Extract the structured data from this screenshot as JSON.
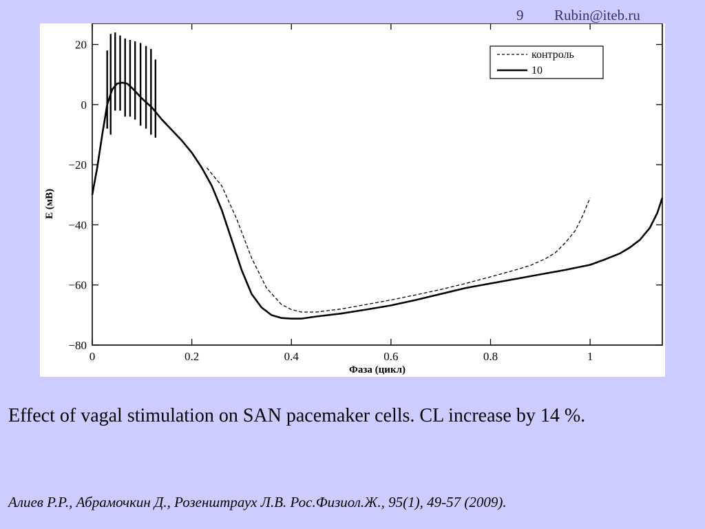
{
  "header": {
    "slide_number": "9",
    "email": "Rubin@iteb.ru"
  },
  "chart_data": {
    "type": "line",
    "title": "",
    "xlabel": "Фаза (цикл)",
    "ylabel": "E (мВ)",
    "xlim": [
      0,
      1.145
    ],
    "ylim": [
      -80,
      27
    ],
    "x_ticks": [
      0,
      0.2,
      0.4,
      0.6,
      0.8,
      1
    ],
    "x_tick_labels": [
      "0",
      "0.2",
      "0.4",
      "0.6",
      "0.8",
      "1"
    ],
    "y_ticks": [
      20,
      0,
      -20,
      -40,
      -60,
      -80
    ],
    "y_tick_labels": [
      "20",
      "0",
      "−20",
      "−40",
      "−60",
      "−80"
    ],
    "grid": false,
    "legend_position": "top-right",
    "series": [
      {
        "name": "контроль",
        "style": "dashed",
        "x": [
          0.23,
          0.26,
          0.29,
          0.32,
          0.35,
          0.38,
          0.4,
          0.42,
          0.45,
          0.5,
          0.55,
          0.6,
          0.65,
          0.7,
          0.75,
          0.8,
          0.85,
          0.88,
          0.91,
          0.93,
          0.95,
          0.97,
          0.985,
          1.0
        ],
        "y": [
          -21,
          -27,
          -38,
          -51,
          -61,
          -66.5,
          -68.2,
          -69,
          -69,
          -68,
          -66.5,
          -65,
          -63.3,
          -61.5,
          -59.5,
          -57.3,
          -55,
          -53.5,
          -51.3,
          -49.3,
          -46,
          -42,
          -37,
          -31
        ]
      },
      {
        "name": "10",
        "style": "solid",
        "x": [
          0,
          0.01,
          0.02,
          0.03,
          0.04,
          0.05,
          0.06,
          0.07,
          0.08,
          0.1,
          0.12,
          0.14,
          0.16,
          0.18,
          0.2,
          0.22,
          0.24,
          0.26,
          0.28,
          0.3,
          0.32,
          0.34,
          0.36,
          0.38,
          0.4,
          0.42,
          0.45,
          0.5,
          0.55,
          0.6,
          0.65,
          0.7,
          0.75,
          0.8,
          0.85,
          0.9,
          0.95,
          1.0,
          1.03,
          1.06,
          1.08,
          1.1,
          1.12,
          1.135,
          1.145
        ],
        "y": [
          -30,
          -21,
          -10,
          0,
          5,
          7,
          7.3,
          7,
          5.5,
          2,
          -1,
          -5,
          -8.5,
          -12,
          -16,
          -21,
          -27,
          -35,
          -45,
          -55,
          -63,
          -67.5,
          -70,
          -71,
          -71.2,
          -71.2,
          -70.5,
          -69.5,
          -68.2,
          -66.8,
          -65,
          -63,
          -61,
          -59.5,
          -58,
          -56.5,
          -55,
          -53.3,
          -51.5,
          -49.5,
          -47.5,
          -45,
          -41,
          -36,
          -31
        ]
      }
    ],
    "vagal_spikes": {
      "x": [
        0.03,
        0.037,
        0.046,
        0.056,
        0.066,
        0.076,
        0.086,
        0.097,
        0.108,
        0.118,
        0.127
      ],
      "top": [
        18,
        23.5,
        24,
        23,
        22,
        21.5,
        21,
        20.5,
        19.5,
        18.5,
        15
      ],
      "bottom": [
        -8,
        -10,
        -2,
        -2,
        -4,
        -4,
        -5,
        -7,
        -8,
        -10,
        -11
      ]
    }
  },
  "caption": {
    "text": "Effect of vagal stimulation on SAN pacemaker cells. CL increase by 14 %."
  },
  "citation": {
    "text": "Алиев Р.Р., Абрамочкин Д., Розенштраух Л.В. Рос.Физиол.Ж., 95(1), 49-57 (2009)."
  }
}
